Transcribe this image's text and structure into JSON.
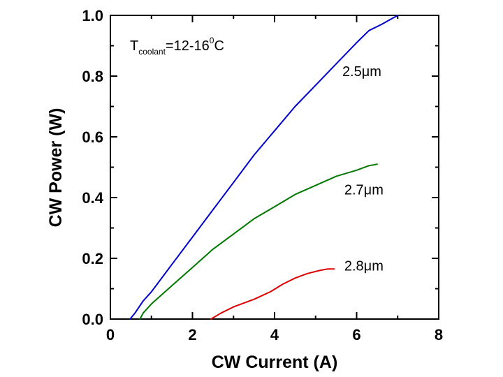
{
  "chart_data": {
    "type": "line",
    "title": "",
    "xlabel": "CW Current (A)",
    "ylabel": "CW Power (W)",
    "xlim": [
      0,
      8
    ],
    "ylim": [
      0,
      1.0
    ],
    "xticks": [
      0,
      2,
      4,
      6,
      8
    ],
    "xtick_labels": [
      "0",
      "2",
      "4",
      "6",
      "8"
    ],
    "yticks": [
      0.0,
      0.2,
      0.4,
      0.6,
      0.8,
      1.0
    ],
    "ytick_labels": [
      "0.0",
      "0.2",
      "0.4",
      "0.6",
      "0.8",
      "1.0"
    ],
    "grid": false,
    "legend": "none",
    "annotation": {
      "main": "T",
      "subscript": "coolant",
      "value": "=12-16",
      "superscript": "0",
      "unit": "C"
    },
    "series": [
      {
        "name": "2.5μm",
        "color": "#0000cc",
        "x": [
          0.48,
          0.6,
          0.8,
          1.0,
          1.5,
          2.0,
          2.5,
          3.0,
          3.5,
          4.0,
          4.5,
          5.0,
          5.5,
          6.0,
          6.3,
          6.6,
          7.0
        ],
        "y": [
          0.0,
          0.02,
          0.06,
          0.09,
          0.18,
          0.27,
          0.36,
          0.45,
          0.54,
          0.62,
          0.7,
          0.77,
          0.84,
          0.91,
          0.95,
          0.97,
          1.0
        ]
      },
      {
        "name": "2.7μm",
        "color": "#007700",
        "x": [
          0.72,
          0.8,
          1.0,
          1.5,
          2.0,
          2.5,
          3.0,
          3.5,
          4.0,
          4.5,
          5.0,
          5.5,
          6.0,
          6.3,
          6.5
        ],
        "y": [
          0.0,
          0.02,
          0.05,
          0.11,
          0.17,
          0.23,
          0.28,
          0.33,
          0.37,
          0.41,
          0.44,
          0.47,
          0.49,
          0.505,
          0.51
        ]
      },
      {
        "name": "2.8μm",
        "color": "#dd0000",
        "x": [
          2.45,
          2.7,
          3.0,
          3.5,
          3.9,
          4.2,
          4.5,
          4.8,
          5.1,
          5.3,
          5.45
        ],
        "y": [
          0.0,
          0.02,
          0.04,
          0.065,
          0.09,
          0.115,
          0.135,
          0.15,
          0.16,
          0.165,
          0.165
        ]
      }
    ],
    "series_labels": [
      "2.5μm",
      "2.7μm",
      "2.8μm"
    ]
  }
}
